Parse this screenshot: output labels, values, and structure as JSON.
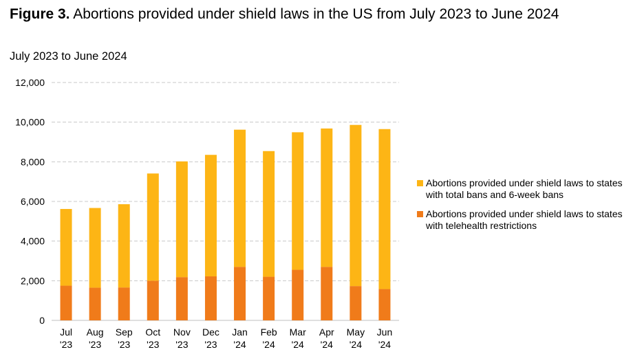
{
  "figure": {
    "label": "Figure 3.",
    "title": "Abortions provided under shield laws in the US from July 2023 to June 2024"
  },
  "chart_data": {
    "type": "bar",
    "stacked": true,
    "subtitle": "July 2023 to June 2024",
    "categories": [
      [
        "Jul",
        "'23"
      ],
      [
        "Aug",
        "'23"
      ],
      [
        "Sep",
        "'23"
      ],
      [
        "Oct",
        "'23"
      ],
      [
        "Nov",
        "'23"
      ],
      [
        "Dec",
        "'23"
      ],
      [
        "Jan",
        "'24"
      ],
      [
        "Feb",
        "'24"
      ],
      [
        "Mar",
        "'24"
      ],
      [
        "Apr",
        "'24"
      ],
      [
        "May",
        "'24"
      ],
      [
        "Jun",
        "'24"
      ]
    ],
    "series": [
      {
        "name": "Abortions provided under shield laws to states with telehealth restrictions",
        "color": "#F07B1A",
        "values": [
          1750,
          1650,
          1660,
          2000,
          2180,
          2220,
          2700,
          2200,
          2550,
          2700,
          1730,
          1580
        ]
      },
      {
        "name": "Abortions provided under shield laws to states with total bans and 6-week bans",
        "color": "#FDB515",
        "values": [
          3870,
          4020,
          4200,
          5410,
          5840,
          6130,
          6920,
          6340,
          6940,
          6980,
          8130,
          8070
        ]
      }
    ],
    "ylim": [
      0,
      12000
    ],
    "yticks": [
      0,
      2000,
      4000,
      6000,
      8000,
      10000,
      12000
    ],
    "ytick_labels": [
      "0",
      "2,000",
      "4,000",
      "6,000",
      "8,000",
      "10,000",
      "12,000"
    ],
    "grid": true,
    "legend_position": "right"
  }
}
